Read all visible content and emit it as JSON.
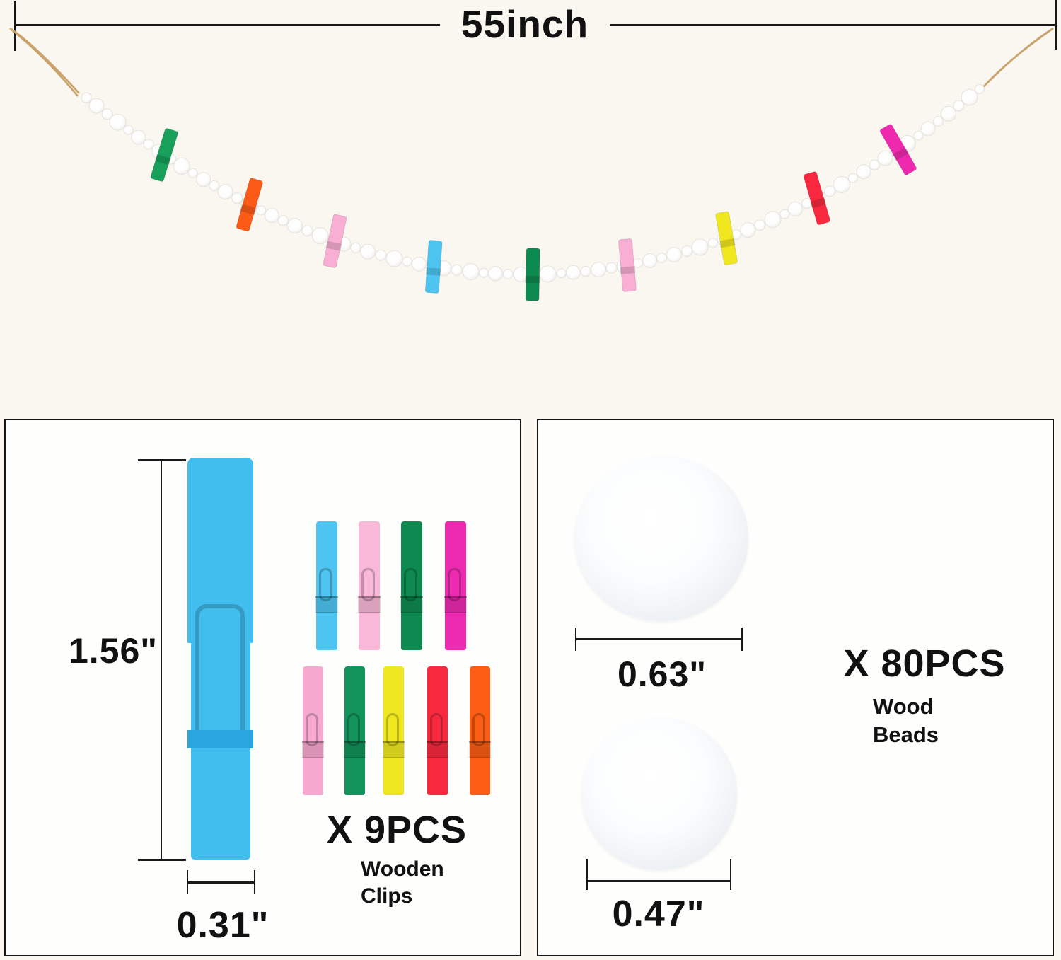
{
  "top_ruler": {
    "label": "55inch"
  },
  "garland": {
    "string_color": "#c9a36b",
    "bead_fill": "#ffffff",
    "bead_stroke": "#e6e2dc",
    "bead_count": 80,
    "clips": [
      {
        "name": "green",
        "color": "#18a05b",
        "t": 0.095,
        "rot": 17
      },
      {
        "name": "orange",
        "color": "#fb5a17",
        "t": 0.19,
        "rot": 16
      },
      {
        "name": "pink",
        "color": "#f9aed3",
        "t": 0.285,
        "rot": 12
      },
      {
        "name": "sky-blue",
        "color": "#4ec4f0",
        "t": 0.395,
        "rot": 4
      },
      {
        "name": "dark-green",
        "color": "#0d8a50",
        "t": 0.505,
        "rot": 1
      },
      {
        "name": "pink",
        "color": "#f9aed3",
        "t": 0.61,
        "rot": -5
      },
      {
        "name": "yellow",
        "color": "#f0e71e",
        "t": 0.72,
        "rot": -10
      },
      {
        "name": "red",
        "color": "#f8293f",
        "t": 0.82,
        "rot": -16
      },
      {
        "name": "magenta",
        "color": "#ee29ae",
        "t": 0.91,
        "rot": -30
      }
    ]
  },
  "clips_panel": {
    "height_label": "1.56\"",
    "width_label": "0.31\"",
    "count_label": "X 9PCS",
    "item_line1": "Wooden",
    "item_line2": "Clips",
    "big_clip_color": "#41bdee",
    "big_clip_band_color": "#2ba5dd",
    "small_clips_row1": [
      "#4ec4f0",
      "#f9b8d8",
      "#0e8a50",
      "#ec2bb1"
    ],
    "small_clips_row2": [
      "#f6a8cf",
      "#12935b",
      "#eee71f",
      "#f8293f",
      "#fa5d13"
    ]
  },
  "beads_panel": {
    "count_label": "X 80PCS",
    "item_line1": "Wood",
    "item_line2": "Beads",
    "big_bead_label": "0.63\"",
    "small_bead_label": "0.47\""
  }
}
